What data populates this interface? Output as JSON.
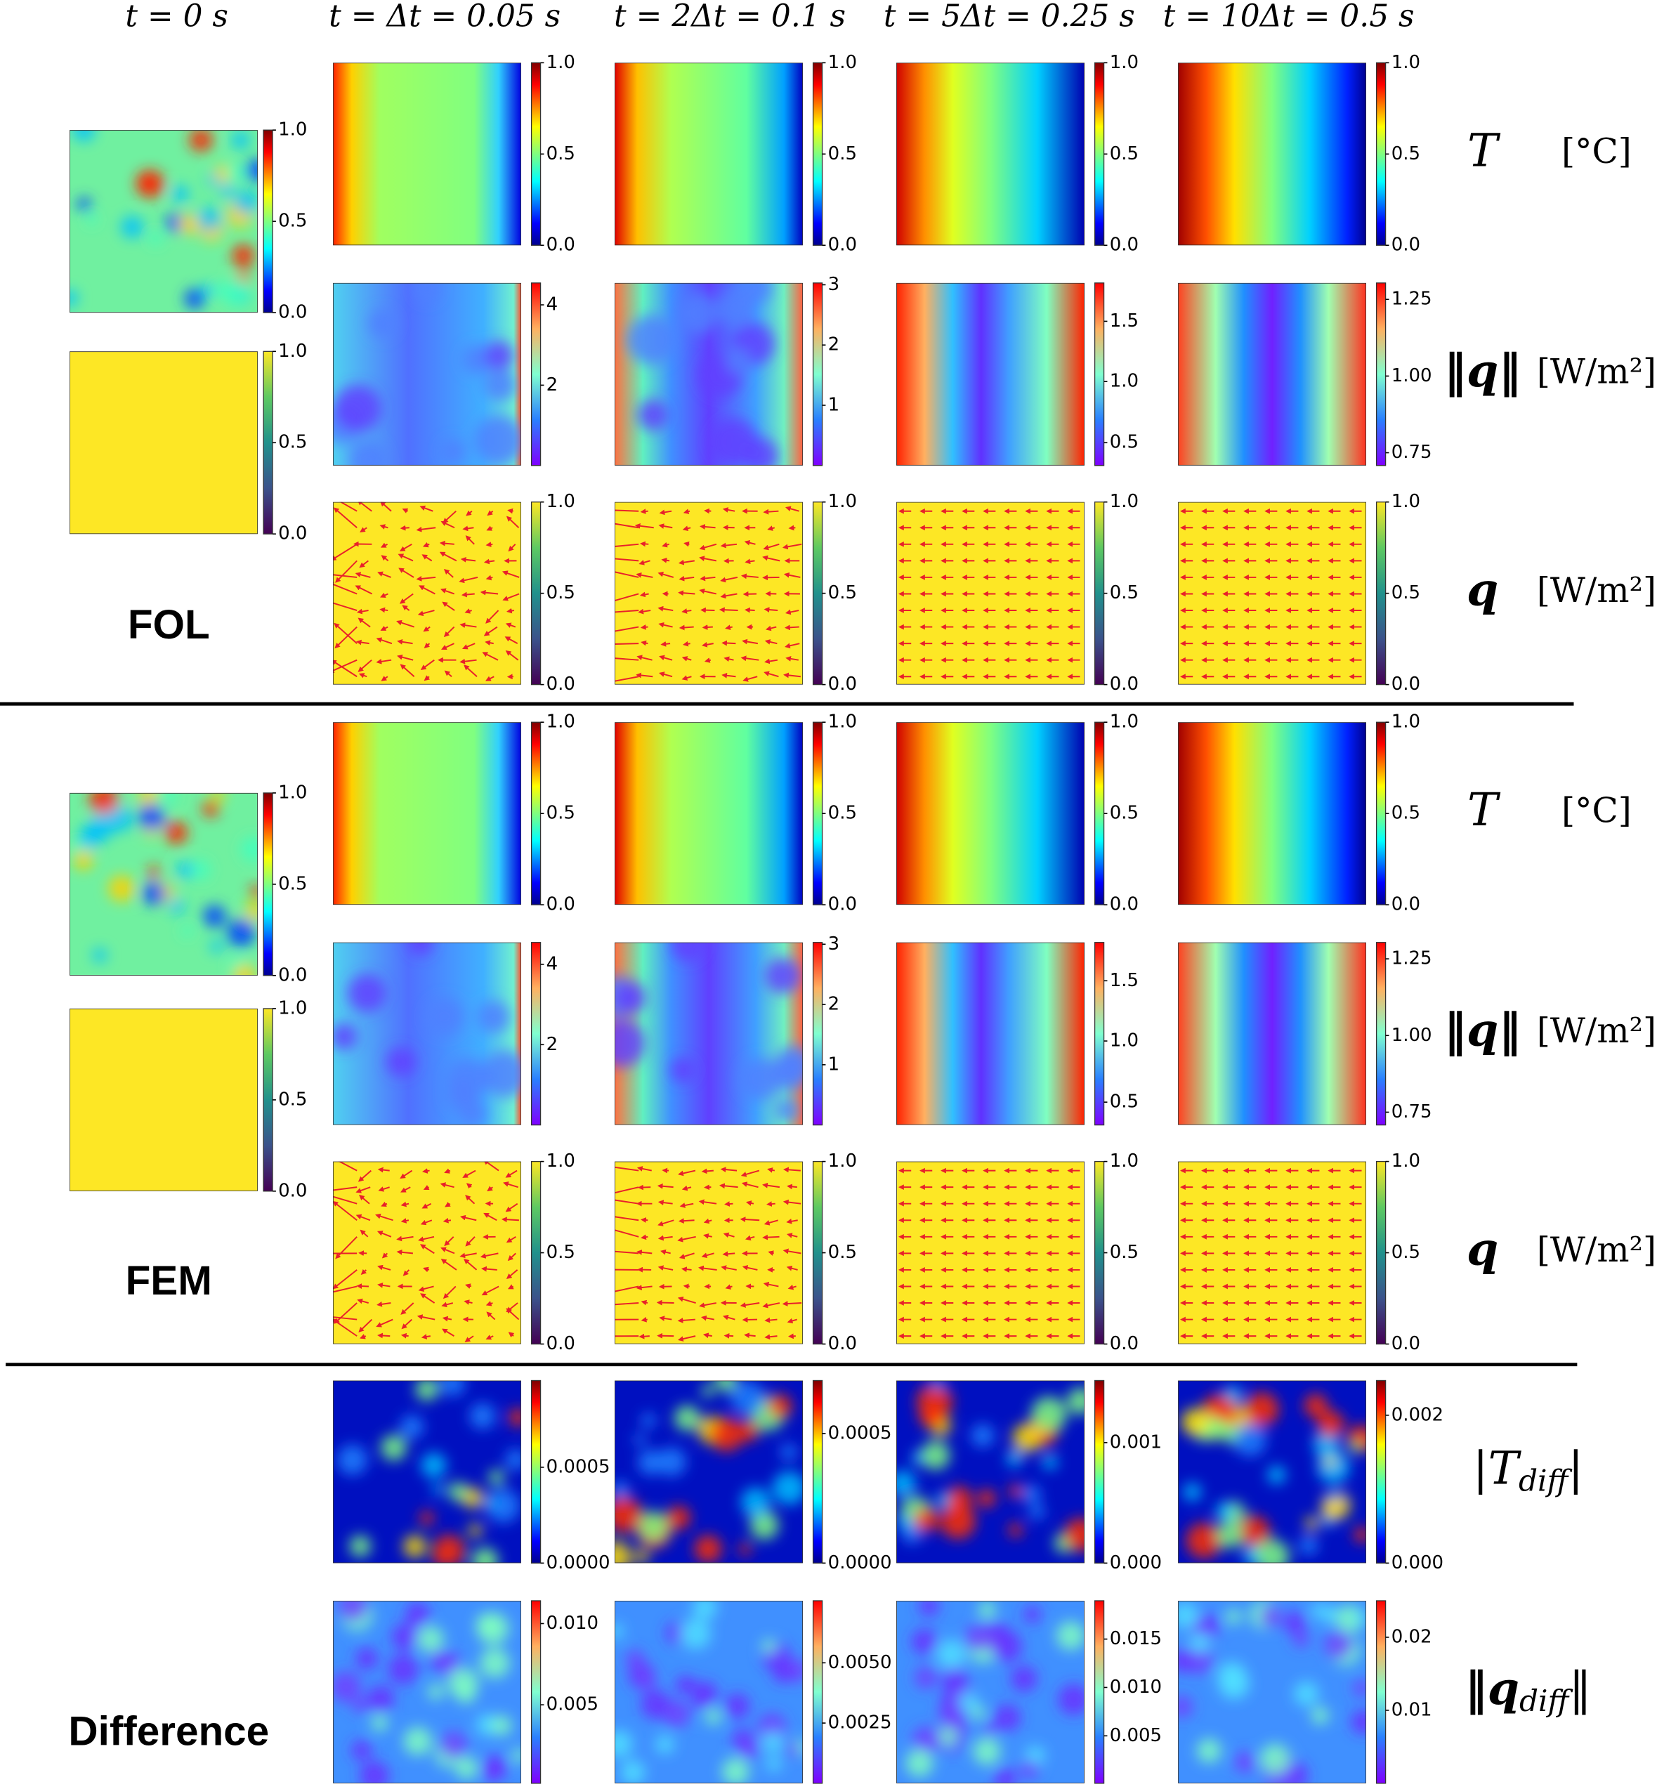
{
  "column_headers": [
    "t = 0 s",
    "t = Δt = 0.05 s",
    "t = 2Δt = 0.1 s",
    "t = 5Δt = 0.25 s",
    "t = 10Δt = 0.5 s"
  ],
  "fol": {
    "label": "FOL",
    "initial": {
      "temperature_ticks": [
        "1.0",
        "0.5",
        "0.0"
      ],
      "conductivity_ticks": [
        "1.0",
        "0.5",
        "0.0"
      ]
    },
    "rows": [
      {
        "symbol": "T",
        "unit": "[°C]",
        "colorbar_ticks": [
          [
            "1.0",
            "0.5",
            "0.0"
          ],
          [
            "1.0",
            "0.5",
            "0.0"
          ],
          [
            "1.0",
            "0.5",
            "0.0"
          ],
          [
            "1.0",
            "0.5",
            "0.0"
          ]
        ]
      },
      {
        "symbol": "‖q‖",
        "unit": "[W/m²]",
        "colorbar_ticks": [
          [
            "4",
            "2"
          ],
          [
            "3",
            "2",
            "1"
          ],
          [
            "1.5",
            "1.0",
            "0.5"
          ],
          [
            "1.25",
            "1.00",
            "0.75"
          ]
        ]
      },
      {
        "symbol": "q",
        "unit": "[W/m²]",
        "colorbar_ticks": [
          [
            "1.0",
            "0.5",
            "0.0"
          ],
          [
            "1.0",
            "0.5",
            "0.0"
          ],
          [
            "1.0",
            "0.5",
            "0.0"
          ],
          [
            "1.0",
            "0.5",
            "0.0"
          ]
        ]
      }
    ]
  },
  "fem": {
    "label": "FEM",
    "initial": {
      "temperature_ticks": [
        "1.0",
        "0.5",
        "0.0"
      ],
      "conductivity_ticks": [
        "1.0",
        "0.5",
        "0.0"
      ]
    },
    "rows": [
      {
        "symbol": "T",
        "unit": "[°C]",
        "colorbar_ticks": [
          [
            "1.0",
            "0.5",
            "0.0"
          ],
          [
            "1.0",
            "0.5",
            "0.0"
          ],
          [
            "1.0",
            "0.5",
            "0.0"
          ],
          [
            "1.0",
            "0.5",
            "0.0"
          ]
        ]
      },
      {
        "symbol": "‖q‖",
        "unit": "[W/m²]",
        "colorbar_ticks": [
          [
            "4",
            "2"
          ],
          [
            "3",
            "2",
            "1"
          ],
          [
            "1.5",
            "1.0",
            "0.5"
          ],
          [
            "1.25",
            "1.00",
            "0.75"
          ]
        ]
      },
      {
        "symbol": "q",
        "unit": "[W/m²]",
        "colorbar_ticks": [
          [
            "1.0",
            "0.5",
            "0.0"
          ],
          [
            "1.0",
            "0.5",
            "0.0"
          ],
          [
            "1.0",
            "0.5",
            "0.0"
          ],
          [
            "1.0",
            "0.5",
            "0.0"
          ]
        ]
      }
    ]
  },
  "difference": {
    "label": "Difference",
    "rows": [
      {
        "symbol": "|T",
        "subscript": "diff",
        "close": "|",
        "colorbar_ticks": [
          [
            "0.0005",
            "0.0000"
          ],
          [
            "0.0005",
            "0.0000"
          ],
          [
            "0.001",
            "0.000"
          ],
          [
            "0.002",
            "0.000"
          ]
        ]
      },
      {
        "symbol": "‖q",
        "subscript": "diff",
        "close": "‖",
        "colorbar_ticks": [
          [
            "0.010",
            "0.005"
          ],
          [
            "0.0050",
            "0.0025"
          ],
          [
            "0.015",
            "0.010",
            "0.005"
          ],
          [
            "0.02",
            "0.01"
          ]
        ]
      }
    ]
  }
}
